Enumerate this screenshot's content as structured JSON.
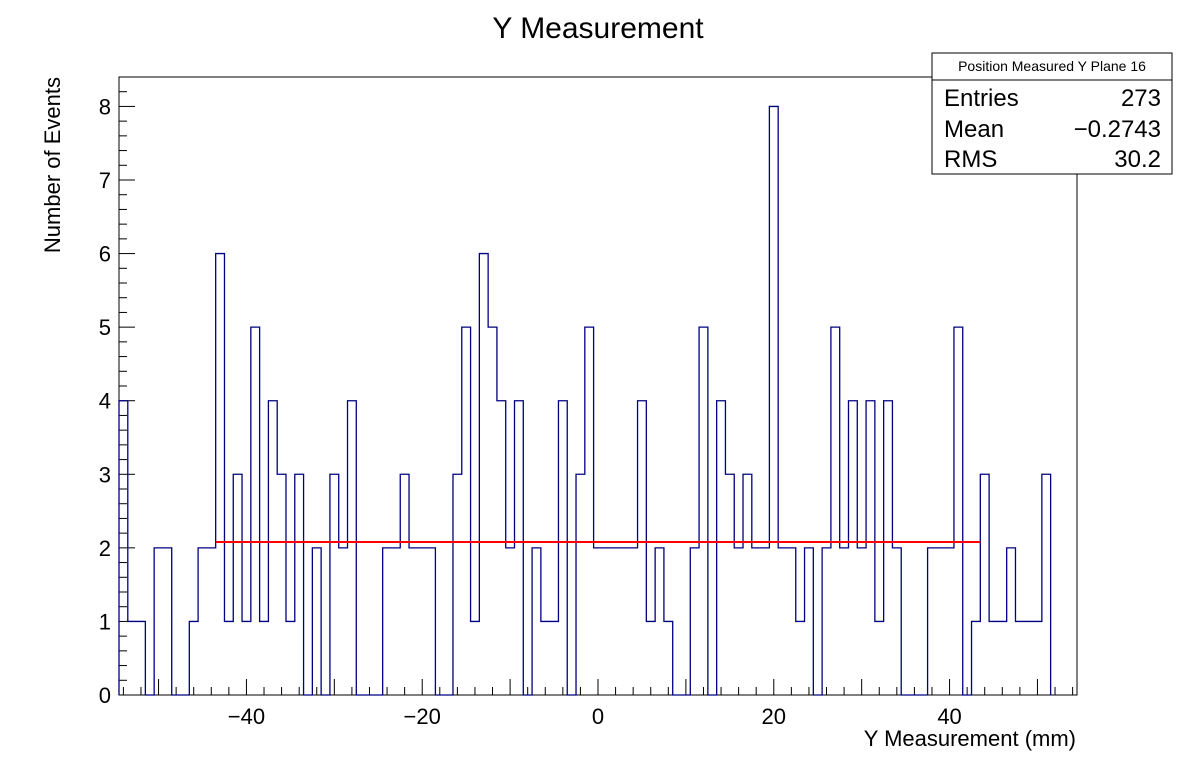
{
  "chart_data": {
    "type": "histogram",
    "title": "Y Measurement",
    "xlabel": "Y Measurement (mm)",
    "ylabel": "Number of Events",
    "xlim": [
      -54.5,
      54.5
    ],
    "ylim": [
      0,
      8.4
    ],
    "x_ticks": [
      -40,
      -20,
      0,
      20,
      40
    ],
    "x_tick_labels": [
      "−40",
      "−20",
      "0",
      "20",
      "40"
    ],
    "y_ticks": [
      0,
      1,
      2,
      3,
      4,
      5,
      6,
      7,
      8
    ],
    "y_tick_labels": [
      "0",
      "1",
      "2",
      "3",
      "4",
      "5",
      "6",
      "7",
      "8"
    ],
    "bin_width": 1.0,
    "bin_start": -54.5,
    "counts": [
      4,
      1,
      1,
      0,
      2,
      2,
      0,
      0,
      1,
      2,
      2,
      6,
      1,
      3,
      1,
      5,
      1,
      4,
      3,
      1,
      3,
      0,
      2,
      0,
      3,
      2,
      4,
      0,
      0,
      0,
      2,
      2,
      3,
      2,
      2,
      2,
      0,
      0,
      3,
      5,
      1,
      6,
      5,
      4,
      2,
      4,
      0,
      2,
      1,
      1,
      4,
      0,
      3,
      5,
      2,
      2,
      2,
      2,
      2,
      4,
      1,
      2,
      1,
      0,
      0,
      2,
      5,
      0,
      4,
      3,
      2,
      3,
      2,
      2,
      8,
      2,
      2,
      1,
      2,
      0,
      2,
      5,
      2,
      4,
      2,
      4,
      1,
      4,
      2,
      0,
      0,
      0,
      2,
      2,
      2,
      5,
      0,
      1,
      3,
      1,
      1,
      2,
      1,
      1,
      1,
      3
    ],
    "series": [
      {
        "color": "#000080",
        "style": "step-histogram"
      },
      {
        "color": "#ff0000",
        "style": "fit-line",
        "x": [
          -43.5,
          43.5
        ],
        "y": [
          2.08,
          2.08
        ]
      }
    ],
    "stats_box": {
      "title": "Position Measured Y Plane 16",
      "rows": [
        {
          "label": "Entries",
          "value": "273"
        },
        {
          "label": "Mean",
          "value": "−0.2743"
        },
        {
          "label": "RMS",
          "value": "30.2"
        }
      ]
    },
    "grid": false,
    "legend_position": "top-right"
  }
}
